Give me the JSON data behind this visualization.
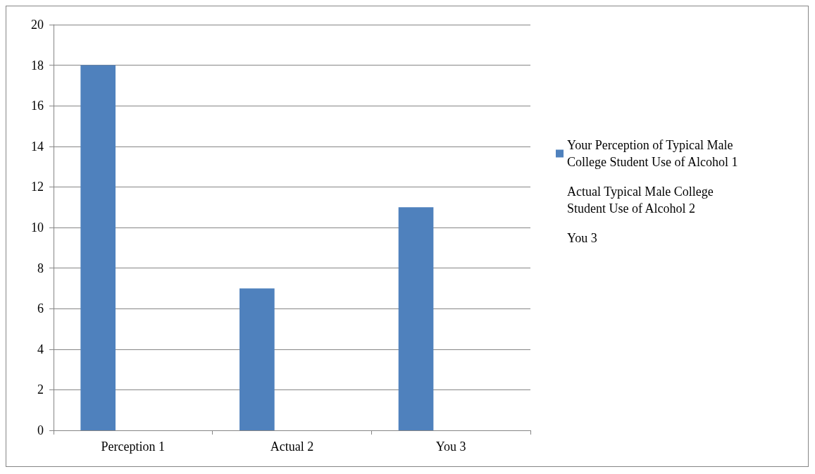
{
  "chart_data": {
    "type": "bar",
    "categories": [
      "Perception 1",
      "Actual 2",
      "You 3"
    ],
    "series": [
      {
        "name": "Your Perception of Typical Male College Student Use of Alcohol 1",
        "color": "#4f81bd",
        "values": [
          18,
          7,
          11
        ]
      },
      {
        "name": "Actual Typical Male College Student Use of Alcohol 2",
        "values": [
          null,
          null,
          null
        ]
      },
      {
        "name": "You 3",
        "values": [
          null,
          null,
          null
        ]
      }
    ],
    "ylim": [
      0,
      20
    ],
    "yticks": [
      0,
      2,
      4,
      6,
      8,
      10,
      12,
      14,
      16,
      18,
      20
    ],
    "grid": "y",
    "legend": "right"
  }
}
